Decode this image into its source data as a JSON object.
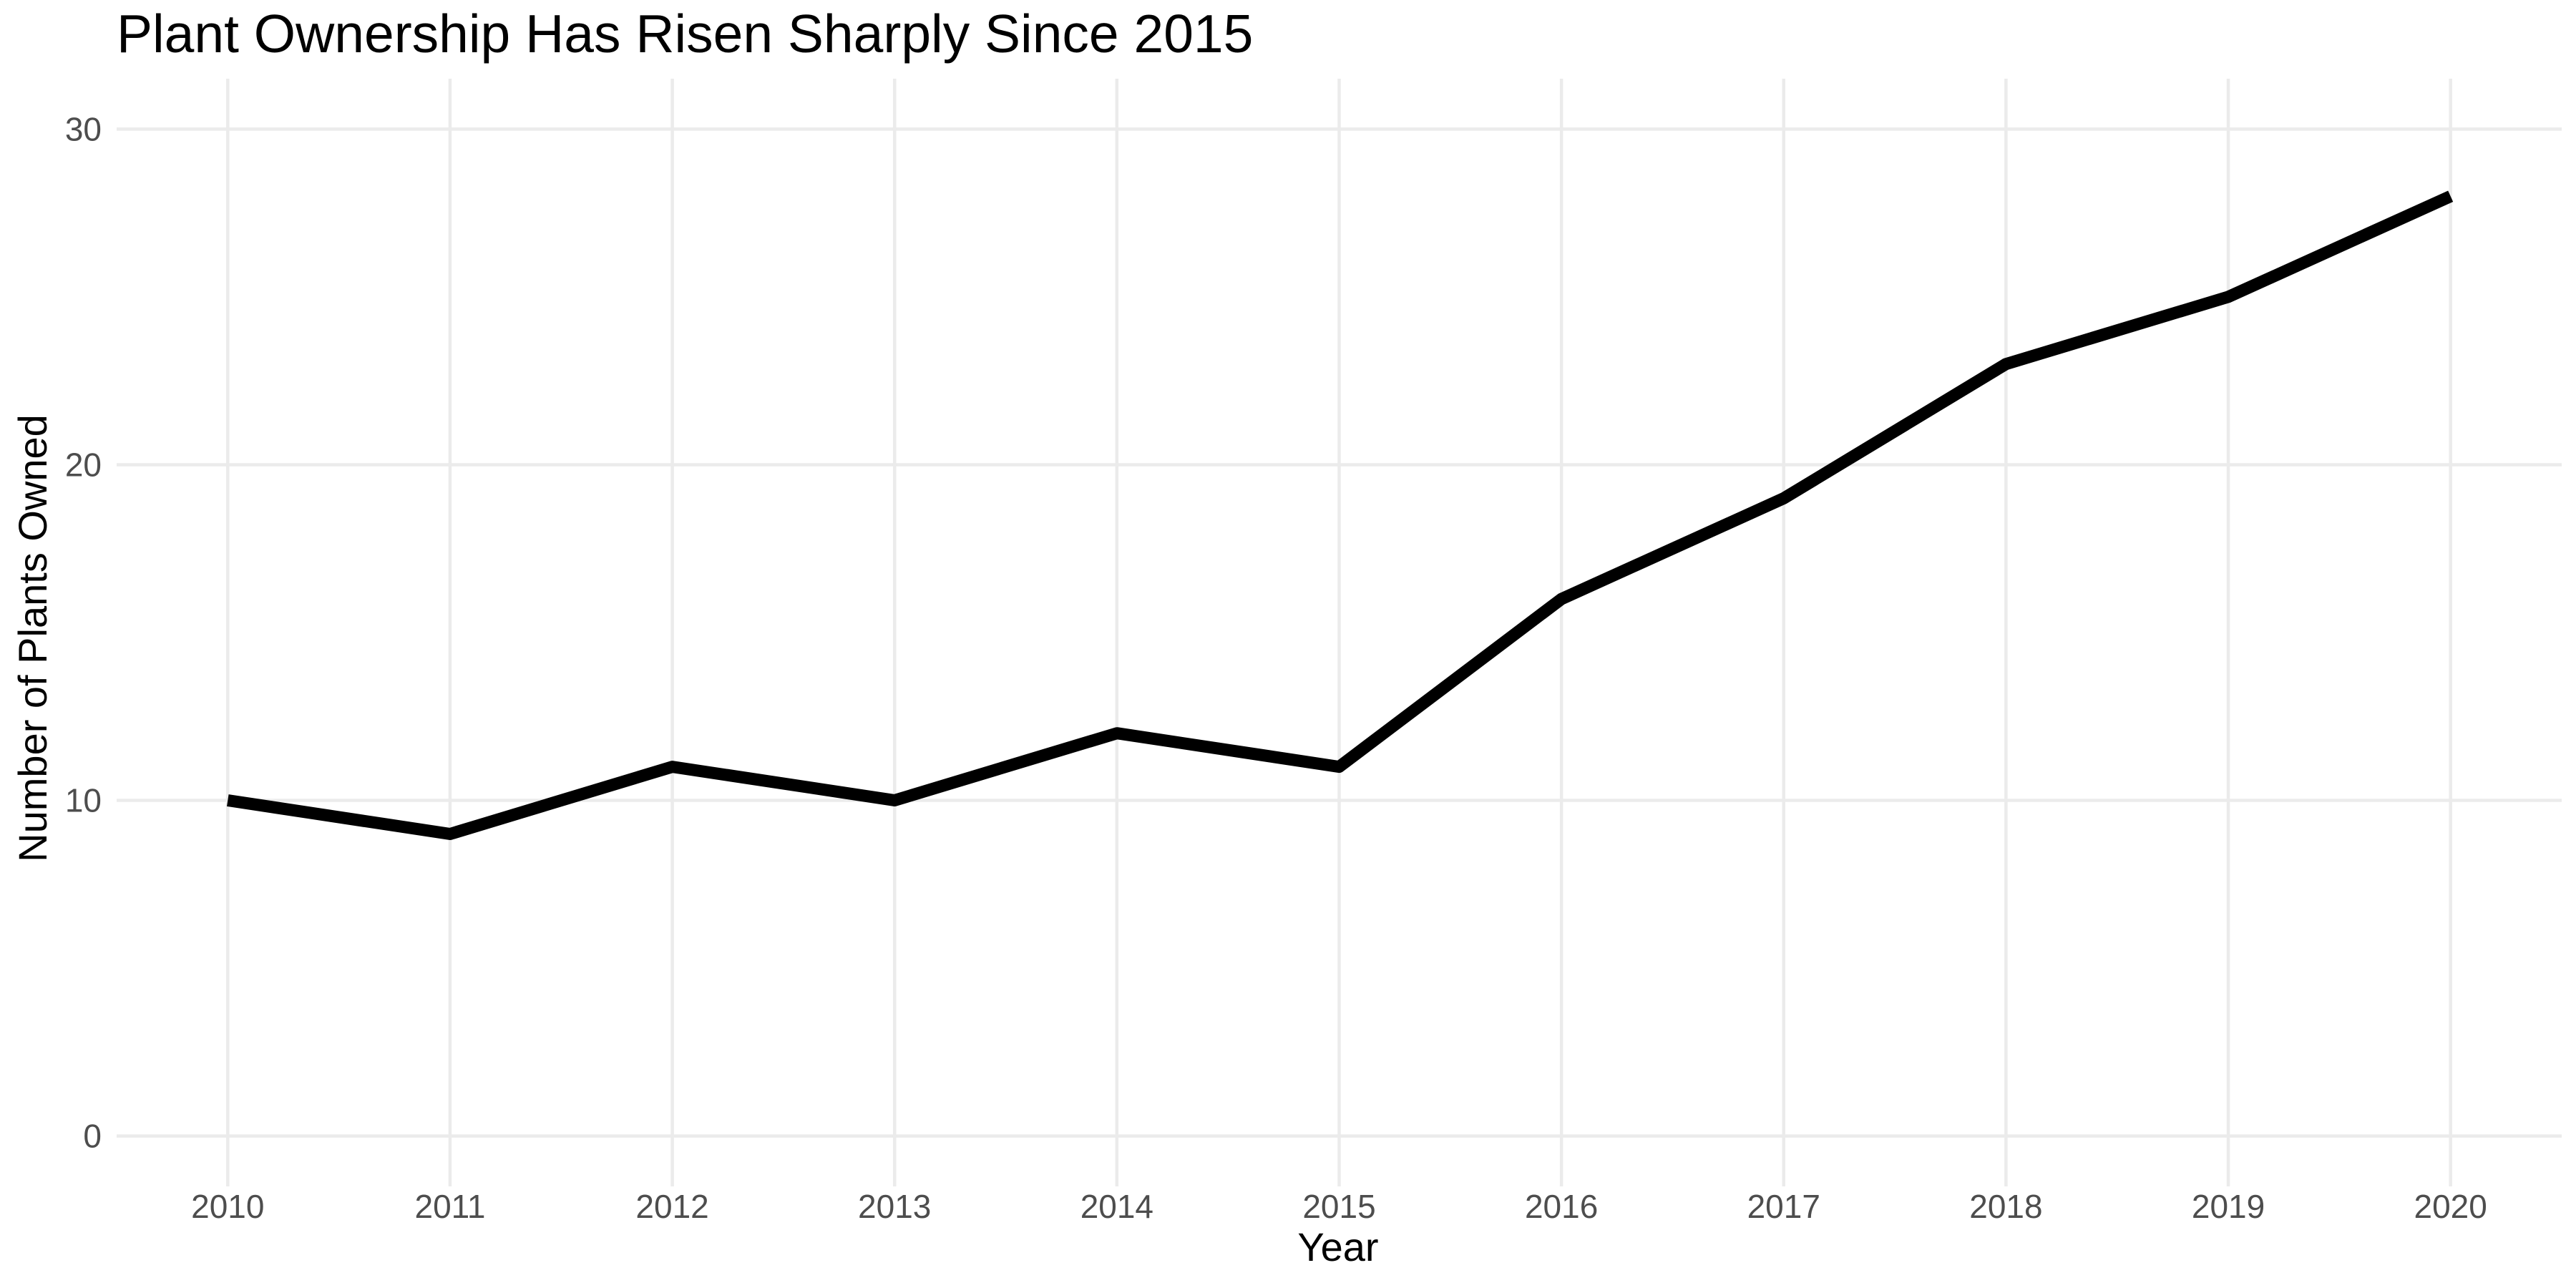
{
  "chart_data": {
    "type": "line",
    "title": "Plant Ownership Has Risen Sharply Since 2015",
    "xlabel": "Year",
    "ylabel": "Number of Plants Owned",
    "x": [
      2010,
      2011,
      2012,
      2013,
      2014,
      2015,
      2016,
      2017,
      2018,
      2019,
      2020
    ],
    "series": [
      {
        "values": [
          10,
          9,
          11,
          10,
          12,
          11,
          16,
          19,
          23,
          25,
          28
        ]
      }
    ],
    "xlim": [
      2009.5,
      2020.5
    ],
    "ylim": [
      -1.5,
      31.5
    ],
    "yticks": [
      0,
      10,
      20,
      30
    ],
    "xticks": [
      2010,
      2011,
      2012,
      2013,
      2014,
      2015,
      2016,
      2017,
      2018,
      2019,
      2020
    ],
    "grid": true,
    "legend": "none",
    "line_color": "#000000",
    "grid_color": "#ebebeb"
  }
}
